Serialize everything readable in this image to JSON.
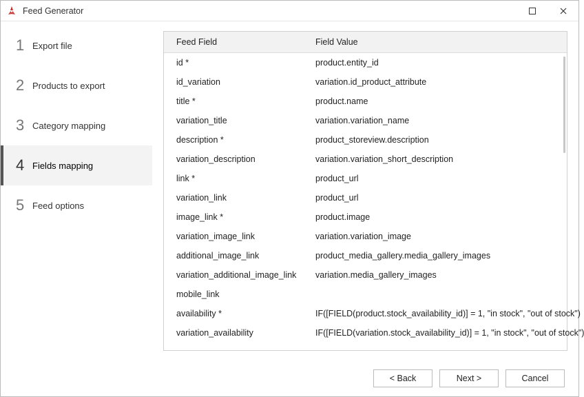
{
  "window": {
    "title": "Feed Generator",
    "icon_color": "#c4302b"
  },
  "sidebar": {
    "steps": [
      {
        "num": "1",
        "label": "Export file"
      },
      {
        "num": "2",
        "label": "Products to export"
      },
      {
        "num": "3",
        "label": "Category mapping"
      },
      {
        "num": "4",
        "label": "Fields mapping"
      },
      {
        "num": "5",
        "label": "Feed options"
      }
    ],
    "active_index": 3
  },
  "table": {
    "headers": {
      "field": "Feed Field",
      "value": "Field Value"
    },
    "rows": [
      {
        "field": "id *",
        "value": "product.entity_id"
      },
      {
        "field": "id_variation",
        "value": "variation.id_product_attribute"
      },
      {
        "field": "title *",
        "value": "product.name"
      },
      {
        "field": "variation_title",
        "value": "variation.variation_name"
      },
      {
        "field": "description *",
        "value": "product_storeview.description"
      },
      {
        "field": "variation_description",
        "value": "variation.variation_short_description"
      },
      {
        "field": "link *",
        "value": "product_url"
      },
      {
        "field": "variation_link",
        "value": "product_url"
      },
      {
        "field": "image_link *",
        "value": "product.image"
      },
      {
        "field": "variation_image_link",
        "value": "variation.variation_image"
      },
      {
        "field": "additional_image_link",
        "value": "product_media_gallery.media_gallery_images"
      },
      {
        "field": "variation_additional_image_link",
        "value": "variation.media_gallery_images"
      },
      {
        "field": "mobile_link",
        "value": ""
      },
      {
        "field": "availability *",
        "value": "IF([FIELD(product.stock_availability_id)] = 1, \"in stock\", \"out of stock\")"
      },
      {
        "field": "variation_availability",
        "value": "IF([FIELD(variation.stock_availability_id)] = 1, \"in stock\", \"out of stock\")"
      }
    ]
  },
  "footer": {
    "back": "< Back",
    "next": "Next >",
    "cancel": "Cancel"
  },
  "colors": {
    "border": "#bbbbbb",
    "header_bg": "#f2f2f2",
    "active_bg": "#f3f3f3",
    "active_border": "#555555",
    "scrollbar": "#c7c7c7"
  }
}
